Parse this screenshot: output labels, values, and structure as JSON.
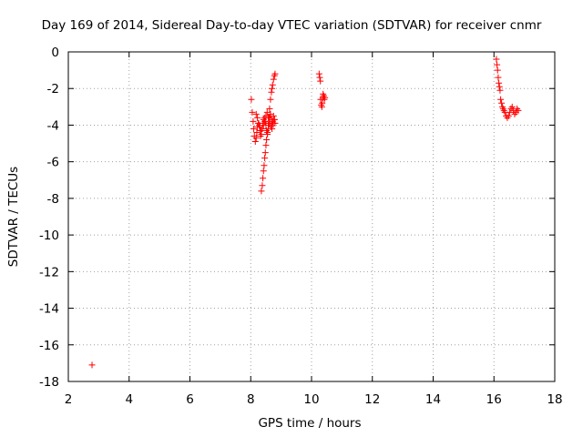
{
  "chart_data": {
    "type": "scatter",
    "title": "Day 169 of 2014, Sidereal Day-to-day VTEC variation (SDTVAR) for receiver cnmr",
    "xlabel": "GPS time / hours",
    "ylabel": "SDTVAR / TECUs",
    "xlim": [
      2,
      18
    ],
    "ylim": [
      -18,
      0
    ],
    "xticks": [
      2,
      4,
      6,
      8,
      10,
      12,
      14,
      16,
      18
    ],
    "yticks": [
      0,
      -2,
      -4,
      -6,
      -8,
      -10,
      -12,
      -14,
      -16,
      -18
    ],
    "grid": true,
    "legend": "none",
    "marker": "plus",
    "color": "#ff0000",
    "series": [
      {
        "x": [
          2.78,
          8.02,
          8.05,
          8.08,
          8.1,
          8.12,
          8.15,
          8.18,
          8.2,
          8.22,
          8.25,
          8.28,
          8.3,
          8.32,
          8.35,
          8.38,
          8.4,
          8.42,
          8.45,
          8.48,
          8.5,
          8.52,
          8.55,
          8.58,
          8.6,
          8.62,
          8.65,
          8.68,
          8.7,
          8.72,
          8.75,
          8.78,
          8.8,
          8.18,
          8.22,
          8.26,
          8.3,
          8.34,
          8.38,
          8.42,
          8.46,
          8.5,
          8.54,
          8.58,
          8.62,
          8.66,
          8.7,
          8.74,
          8.78,
          8.35,
          8.38,
          8.4,
          8.42,
          8.44,
          8.46,
          8.48,
          8.5,
          8.52,
          8.55,
          8.58,
          8.6,
          8.62,
          8.65,
          8.68,
          8.7,
          8.72,
          8.75,
          8.78,
          8.8,
          10.25,
          10.27,
          10.29,
          10.3,
          10.32,
          10.34,
          10.35,
          10.37,
          10.38,
          10.4,
          10.42,
          10.44,
          16.08,
          16.1,
          16.12,
          16.14,
          16.16,
          16.18,
          16.2,
          16.22,
          16.25,
          16.28,
          16.3,
          16.33,
          16.36,
          16.4,
          16.44,
          16.48,
          16.52,
          16.56,
          16.6,
          16.64,
          16.68,
          16.72,
          16.76,
          16.8
        ],
        "y": [
          -17.1,
          -2.6,
          -3.3,
          -3.8,
          -4.2,
          -4.6,
          -4.9,
          -4.7,
          -4.4,
          -4.1,
          -3.9,
          -4.0,
          -4.3,
          -4.6,
          -4.5,
          -4.2,
          -3.9,
          -3.7,
          -3.6,
          -3.8,
          -4.0,
          -4.3,
          -4.5,
          -4.2,
          -3.9,
          -3.6,
          -3.4,
          -3.7,
          -4.0,
          -3.8,
          -3.5,
          -3.7,
          -3.9,
          -3.4,
          -3.6,
          -3.9,
          -4.1,
          -4.3,
          -4.2,
          -4.0,
          -3.8,
          -3.5,
          -3.3,
          -3.6,
          -3.9,
          -4.1,
          -4.2,
          -3.9,
          -3.7,
          -7.6,
          -7.3,
          -6.9,
          -6.5,
          -6.2,
          -5.8,
          -5.5,
          -5.1,
          -4.8,
          -4.4,
          -4.0,
          -3.6,
          -3.1,
          -2.6,
          -2.2,
          -2.0,
          -1.8,
          -1.5,
          -1.3,
          -1.2,
          -1.2,
          -1.4,
          -1.6,
          -2.6,
          -2.9,
          -3.0,
          -2.8,
          -2.5,
          -2.3,
          -2.4,
          -2.6,
          -2.5,
          -0.4,
          -0.7,
          -1.0,
          -1.4,
          -1.7,
          -1.9,
          -2.1,
          -2.6,
          -2.8,
          -3.0,
          -3.1,
          -3.2,
          -3.3,
          -3.5,
          -3.6,
          -3.5,
          -3.3,
          -3.1,
          -3.0,
          -3.2,
          -3.4,
          -3.3,
          -3.1,
          -3.2
        ]
      }
    ]
  }
}
